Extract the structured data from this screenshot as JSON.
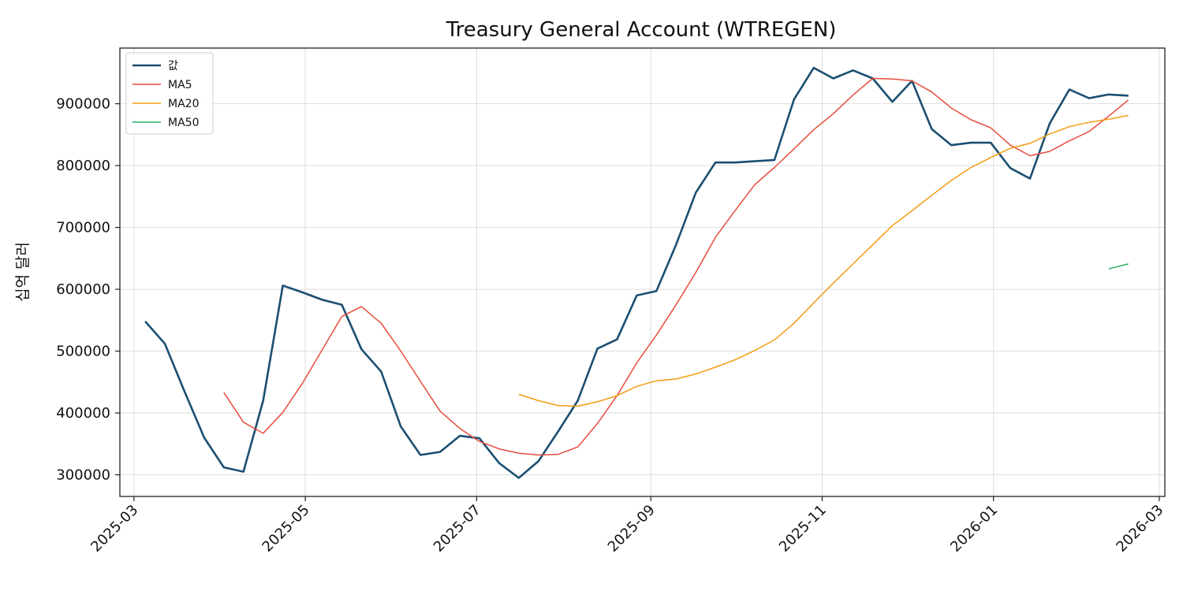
{
  "chart_data": {
    "type": "line",
    "title": "Treasury General Account (WTREGEN)",
    "xlabel": "",
    "ylabel": "십억 달러",
    "grid": true,
    "legend_position": "top-left",
    "xlim": [
      "2025-02-24",
      "2026-03-03"
    ],
    "ylim": [
      265000,
      990000
    ],
    "x_ticks": [
      "2025-03-01",
      "2025-05-01",
      "2025-07-01",
      "2025-09-01",
      "2025-11-01",
      "2026-01-01",
      "2026-03-01"
    ],
    "x_tick_labels": [
      "2025-03",
      "2025-05",
      "2025-07",
      "2025-09",
      "2025-11",
      "2026-01",
      "2026-03"
    ],
    "y_ticks": [
      300000,
      400000,
      500000,
      600000,
      700000,
      800000,
      900000
    ],
    "y_tick_labels": [
      "300000",
      "400000",
      "500000",
      "600000",
      "700000",
      "800000",
      "900000"
    ],
    "x": [
      "2025-03-05",
      "2025-03-12",
      "2025-03-19",
      "2025-03-26",
      "2025-04-02",
      "2025-04-09",
      "2025-04-16",
      "2025-04-23",
      "2025-04-30",
      "2025-05-07",
      "2025-05-14",
      "2025-05-21",
      "2025-05-28",
      "2025-06-04",
      "2025-06-11",
      "2025-06-18",
      "2025-06-25",
      "2025-07-02",
      "2025-07-09",
      "2025-07-16",
      "2025-07-23",
      "2025-07-30",
      "2025-08-06",
      "2025-08-13",
      "2025-08-20",
      "2025-08-27",
      "2025-09-03",
      "2025-09-10",
      "2025-09-17",
      "2025-09-24",
      "2025-10-01",
      "2025-10-08",
      "2025-10-15",
      "2025-10-22",
      "2025-10-29",
      "2025-11-05",
      "2025-11-12",
      "2025-11-19",
      "2025-11-26",
      "2025-12-03",
      "2025-12-10",
      "2025-12-17",
      "2025-12-24",
      "2025-12-31",
      "2026-01-07",
      "2026-01-14",
      "2026-01-21",
      "2026-01-28",
      "2026-02-04",
      "2026-02-11",
      "2026-02-18"
    ],
    "series": [
      {
        "name": "값",
        "color": "#1b4f72",
        "values": [
          548000,
          512000,
          435000,
          360000,
          312000,
          305000,
          420000,
          606000,
          595000,
          583000,
          575000,
          503000,
          467000,
          378000,
          332000,
          337000,
          363000,
          359000,
          319000,
          295000,
          322000,
          370000,
          420000,
          504000,
          519000,
          590000,
          597000,
          672000,
          756000,
          805000,
          805000,
          807000,
          809000,
          907000,
          958000,
          941000,
          954000,
          941000,
          903000,
          937000,
          859000,
          833000,
          837000,
          837000,
          796000,
          779000,
          868000,
          923000,
          909000,
          915000,
          913000
        ]
      },
      {
        "name": "MA5",
        "color": "#e74c3c",
        "values": [
          null,
          null,
          null,
          null,
          433000,
          385000,
          367000,
          401000,
          448000,
          502000,
          556000,
          572000,
          545000,
          500000,
          451000,
          403000,
          375000,
          354000,
          342000,
          335000,
          332000,
          333000,
          345000,
          383000,
          428000,
          481000,
          526000,
          575000,
          627000,
          684000,
          727000,
          769000,
          797000,
          827000,
          858000,
          884000,
          914000,
          941000,
          940000,
          937000,
          919000,
          893000,
          874000,
          861000,
          833000,
          816000,
          823000,
          840000,
          855000,
          880000,
          906000
        ]
      },
      {
        "name": "MA20",
        "color": "#f39c12",
        "values": [
          null,
          null,
          null,
          null,
          null,
          null,
          null,
          null,
          null,
          null,
          null,
          null,
          null,
          null,
          null,
          null,
          null,
          null,
          null,
          430000,
          420000,
          412000,
          411000,
          418000,
          428000,
          443000,
          452000,
          455000,
          463000,
          474000,
          486000,
          501000,
          518000,
          545000,
          578000,
          610000,
          641000,
          672000,
          703000,
          727000,
          752000,
          776000,
          797000,
          813000,
          828000,
          836000,
          851000,
          863000,
          870000,
          875000,
          881000
        ]
      },
      {
        "name": "MA50",
        "color": "#27ae60",
        "values": [
          null,
          null,
          null,
          null,
          null,
          null,
          null,
          null,
          null,
          null,
          null,
          null,
          null,
          null,
          null,
          null,
          null,
          null,
          null,
          null,
          null,
          null,
          null,
          null,
          null,
          null,
          null,
          null,
          null,
          null,
          null,
          null,
          null,
          null,
          null,
          null,
          null,
          null,
          null,
          null,
          null,
          null,
          null,
          null,
          null,
          null,
          null,
          null,
          null,
          633000,
          641000
        ]
      }
    ]
  }
}
